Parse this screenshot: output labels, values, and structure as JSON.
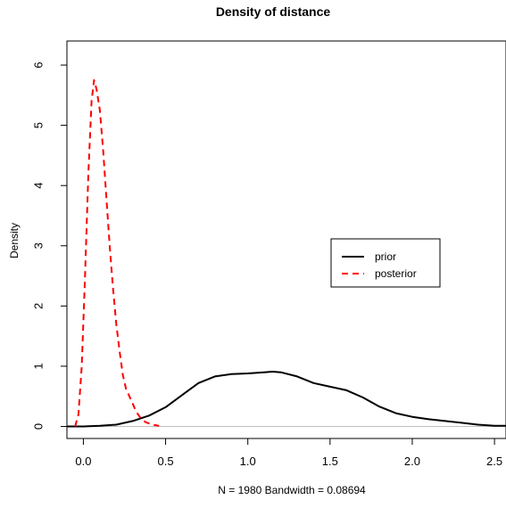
{
  "chart_data": {
    "type": "line",
    "title": "Density of distance",
    "xlabel": "N = 1980   Bandwidth = 0.08694",
    "ylabel": "Density",
    "xlim": [
      -0.1,
      2.57
    ],
    "ylim": [
      -0.2,
      6.4
    ],
    "x_ticks": [
      0.0,
      0.5,
      1.0,
      1.5,
      2.0,
      2.5
    ],
    "x_tick_labels": [
      "0.0",
      "0.5",
      "1.0",
      "1.5",
      "2.0",
      "2.5"
    ],
    "y_ticks": [
      0,
      1,
      2,
      3,
      4,
      5,
      6
    ],
    "y_tick_labels": [
      "0",
      "1",
      "2",
      "3",
      "4",
      "5",
      "6"
    ],
    "grid": false,
    "baseline": 0,
    "legend_position": "right-middle",
    "series": [
      {
        "name": "prior",
        "color": "#000000",
        "dash": "solid",
        "points": [
          [
            -0.1,
            0.0
          ],
          [
            0.0,
            0.0
          ],
          [
            0.1,
            0.01
          ],
          [
            0.2,
            0.03
          ],
          [
            0.3,
            0.09
          ],
          [
            0.4,
            0.18
          ],
          [
            0.5,
            0.32
          ],
          [
            0.6,
            0.52
          ],
          [
            0.7,
            0.72
          ],
          [
            0.8,
            0.83
          ],
          [
            0.9,
            0.87
          ],
          [
            1.0,
            0.88
          ],
          [
            1.1,
            0.9
          ],
          [
            1.15,
            0.91
          ],
          [
            1.2,
            0.9
          ],
          [
            1.3,
            0.83
          ],
          [
            1.4,
            0.72
          ],
          [
            1.5,
            0.66
          ],
          [
            1.6,
            0.6
          ],
          [
            1.7,
            0.48
          ],
          [
            1.8,
            0.33
          ],
          [
            1.9,
            0.22
          ],
          [
            2.0,
            0.16
          ],
          [
            2.1,
            0.12
          ],
          [
            2.2,
            0.09
          ],
          [
            2.3,
            0.06
          ],
          [
            2.4,
            0.03
          ],
          [
            2.5,
            0.01
          ],
          [
            2.57,
            0.01
          ]
        ]
      },
      {
        "name": "posterior",
        "color": "#ff0000",
        "dash": "dashed",
        "points": [
          [
            -0.05,
            0.0
          ],
          [
            -0.03,
            0.2
          ],
          [
            -0.01,
            1.0
          ],
          [
            0.01,
            2.5
          ],
          [
            0.03,
            4.2
          ],
          [
            0.05,
            5.4
          ],
          [
            0.065,
            5.75
          ],
          [
            0.08,
            5.6
          ],
          [
            0.1,
            5.25
          ],
          [
            0.12,
            4.6
          ],
          [
            0.14,
            3.8
          ],
          [
            0.16,
            3.0
          ],
          [
            0.18,
            2.3
          ],
          [
            0.2,
            1.7
          ],
          [
            0.22,
            1.25
          ],
          [
            0.24,
            0.85
          ],
          [
            0.26,
            0.62
          ],
          [
            0.28,
            0.5
          ],
          [
            0.3,
            0.38
          ],
          [
            0.32,
            0.25
          ],
          [
            0.35,
            0.13
          ],
          [
            0.38,
            0.07
          ],
          [
            0.42,
            0.03
          ],
          [
            0.46,
            0.01
          ]
        ]
      }
    ]
  }
}
